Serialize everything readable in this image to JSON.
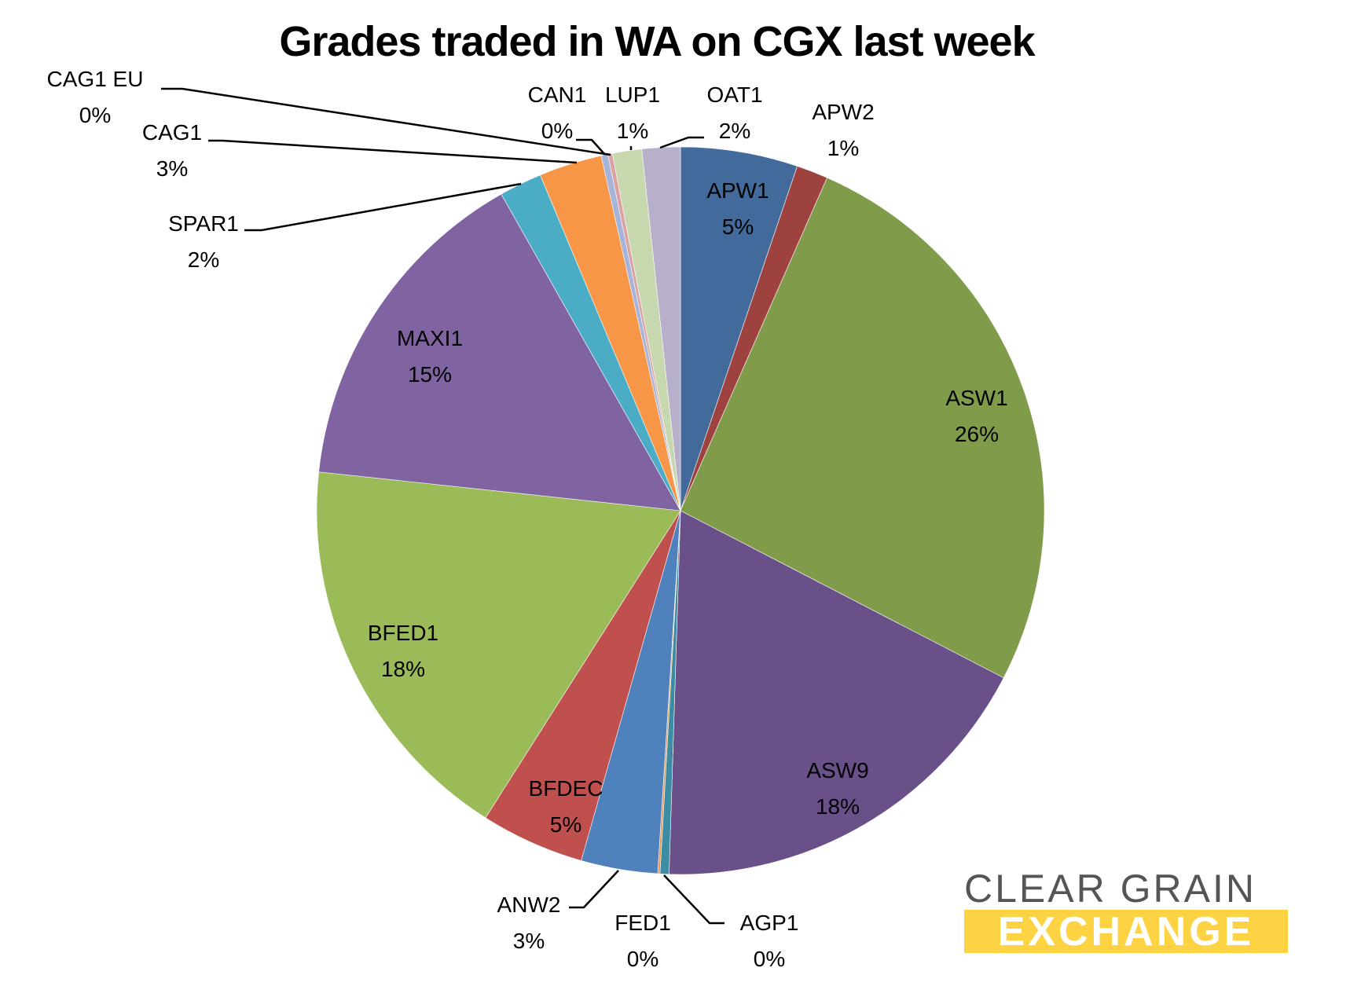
{
  "chart_data": {
    "type": "pie",
    "title": "Grades traded in WA on CGX last week",
    "start_angle_deg": 0,
    "direction": "clockwise",
    "slices": [
      {
        "label": "APW1",
        "value": 5.2,
        "display": "5%",
        "color": "#426b9b"
      },
      {
        "label": "APW2",
        "value": 1.4,
        "display": "1%",
        "color": "#9e4240"
      },
      {
        "label": "ASW1",
        "value": 26.0,
        "display": "26%",
        "color": "#809b4a"
      },
      {
        "label": "ASW9",
        "value": 17.9,
        "display": "18%",
        "color": "#6a5088"
      },
      {
        "label": "AGP1",
        "value": 0.4,
        "display": "0%",
        "color": "#3c8ca3"
      },
      {
        "label": "FED1",
        "value": 0.1,
        "display": "0%",
        "color": "#e49a56"
      },
      {
        "label": "ANW2",
        "value": 3.4,
        "display": "3%",
        "color": "#4f81bd"
      },
      {
        "label": "BFDEC",
        "value": 4.6,
        "display": "5%",
        "color": "#c0504d"
      },
      {
        "label": "BFED1",
        "value": 17.7,
        "display": "18%",
        "color": "#9bbb59"
      },
      {
        "label": "MAXI1",
        "value": 15.1,
        "display": "15%",
        "color": "#8064a2"
      },
      {
        "label": "SPAR1",
        "value": 1.9,
        "display": "2%",
        "color": "#4bacc6"
      },
      {
        "label": "CAG1",
        "value": 2.8,
        "display": "3%",
        "color": "#f79646"
      },
      {
        "label": "CAG1 EU",
        "value": 0.3,
        "display": "0%",
        "color": "#a5b4d8"
      },
      {
        "label": "CAN1",
        "value": 0.2,
        "display": "0%",
        "color": "#d9a3a1"
      },
      {
        "label": "LUP1",
        "value": 1.3,
        "display": "1%",
        "color": "#c8d8ae"
      },
      {
        "label": "OAT1",
        "value": 1.7,
        "display": "2%",
        "color": "#b8afca"
      }
    ],
    "legend": "none",
    "data_labels": "category name and percentage"
  },
  "logo": {
    "line1": "CLEAR GRAIN",
    "line2": "EXCHANGE",
    "band_color": "#fdd344",
    "text_color": "#555555"
  },
  "labels": {
    "APW1": {
      "name": "APW1",
      "pct": "5%"
    },
    "APW2": {
      "name": "APW2",
      "pct": "1%"
    },
    "ASW1": {
      "name": "ASW1",
      "pct": "26%"
    },
    "ASW9": {
      "name": "ASW9",
      "pct": "18%"
    },
    "AGP1": {
      "name": "AGP1",
      "pct": "0%"
    },
    "FED1": {
      "name": "FED1",
      "pct": "0%"
    },
    "ANW2": {
      "name": "ANW2",
      "pct": "3%"
    },
    "BFDEC": {
      "name": "BFDEC",
      "pct": "5%"
    },
    "BFED1": {
      "name": "BFED1",
      "pct": "18%"
    },
    "MAXI1": {
      "name": "MAXI1",
      "pct": "15%"
    },
    "SPAR1": {
      "name": "SPAR1",
      "pct": "2%"
    },
    "CAG1": {
      "name": "CAG1",
      "pct": "3%"
    },
    "CAG1EU": {
      "name": "CAG1 EU",
      "pct": "0%"
    },
    "CAN1": {
      "name": "CAN1",
      "pct": "0%"
    },
    "LUP1": {
      "name": "LUP1",
      "pct": "1%"
    },
    "OAT1": {
      "name": "OAT1",
      "pct": "2%"
    }
  }
}
